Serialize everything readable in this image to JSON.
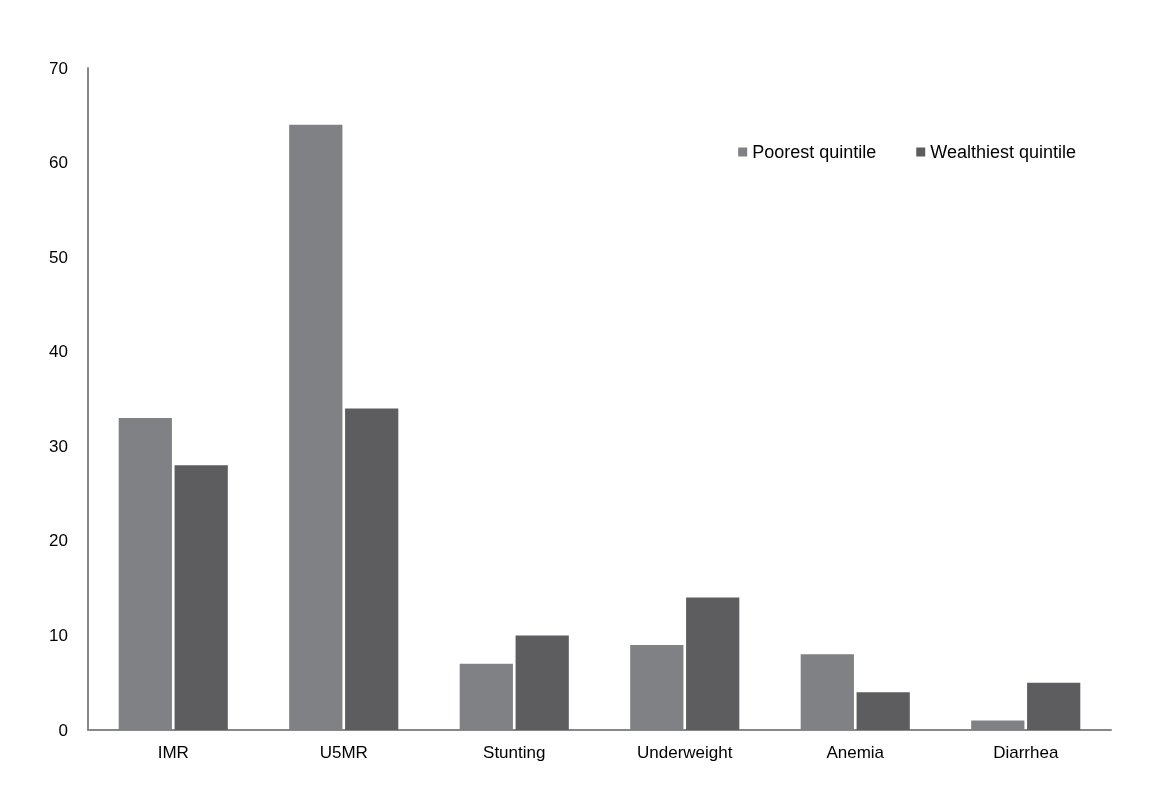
{
  "chart_data": {
    "type": "bar",
    "categories": [
      "IMR",
      "U5MR",
      "Stunting",
      "Underweight",
      "Anemia",
      "Diarrhea"
    ],
    "series": [
      {
        "name": "Poorest quintile",
        "color": "#808184",
        "values": [
          33,
          64,
          7,
          9,
          8,
          1
        ]
      },
      {
        "name": "Wealthiest quintile",
        "color": "#5d5d5f",
        "values": [
          28,
          34,
          10,
          14,
          4,
          5
        ]
      }
    ],
    "ylim": [
      0,
      70
    ],
    "yticks": [
      0,
      10,
      20,
      30,
      40,
      50,
      60,
      70
    ],
    "grid": false,
    "legend": "top right"
  }
}
